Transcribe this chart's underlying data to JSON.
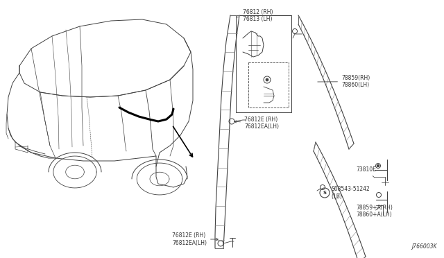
{
  "bg_color": "#ffffff",
  "line_color": "#404040",
  "text_color": "#333333",
  "diagram_id": "J766003K",
  "fig_w": 6.4,
  "fig_h": 3.72,
  "dpi": 100,
  "labels": {
    "part1": "76812 (RH)\n76813 (LH)",
    "part2a": "76812E (RH)\n76812EA(LH)",
    "part2b": "76812E (RH)\n76812EA(LH)",
    "part3": "78859(RH)\n78860(LH)",
    "part4": "73810E",
    "part5": "S08543-51242\n(1B)",
    "part6": "78859+A(RH)\n78860+A(LH)"
  }
}
